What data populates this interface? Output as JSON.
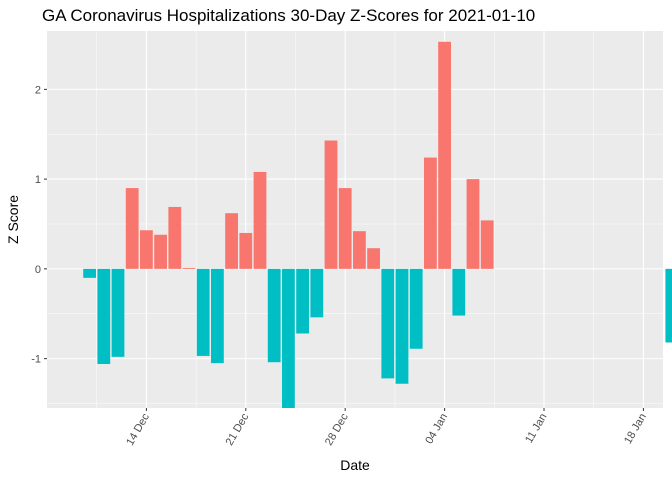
{
  "chart_data": {
    "type": "bar",
    "title": "GA Coronavirus Hospitalizations 30-Day Z-Scores for 2021-01-10",
    "xlabel": "Date",
    "ylabel": "Z Score",
    "x_ticks": [
      "14 Dec",
      "21 Dec",
      "28 Dec",
      "04 Jan",
      "11 Jan",
      "18 Jan"
    ],
    "y_ticks": [
      -1,
      0,
      1,
      2
    ],
    "ylim": [
      -1.55,
      2.65
    ],
    "grid": true,
    "legend": "none",
    "colors": {
      "positive": "#F8766D",
      "negative": "#00BFC4",
      "panel": "#EBEBEB",
      "grid": "#FFFFFF"
    },
    "dates": [
      "2020-12-10",
      "2020-12-11",
      "2020-12-12",
      "2020-12-13",
      "2020-12-14",
      "2020-12-15",
      "2020-12-16",
      "2020-12-17",
      "2020-12-18",
      "2020-12-19",
      "2020-12-20",
      "2020-12-21",
      "2020-12-22",
      "2020-12-23",
      "2020-12-24",
      "2020-12-25",
      "2020-12-26",
      "2020-12-27",
      "2020-12-28",
      "2020-12-29",
      "2020-12-30",
      "2020-12-31",
      "2021-01-01",
      "2021-01-02",
      "2021-01-03",
      "2021-01-04",
      "2021-01-05",
      "2021-01-06",
      "2021-01-07",
      "2021-01-08",
      "2021-01-09",
      "2021-01-10",
      "2021-01-20"
    ],
    "values": [
      -0.1,
      -1.06,
      -0.98,
      0.9,
      0.43,
      0.38,
      0.69,
      0.01,
      -0.97,
      -1.05,
      0.62,
      0.4,
      1.08,
      -1.04,
      -1.55,
      -0.72,
      -0.54,
      1.43,
      0.9,
      0.42,
      0.23,
      -1.22,
      -1.28,
      -0.89,
      1.24,
      2.53,
      -0.52,
      1.0,
      0.54,
      null,
      null,
      null,
      -0.82
    ]
  }
}
